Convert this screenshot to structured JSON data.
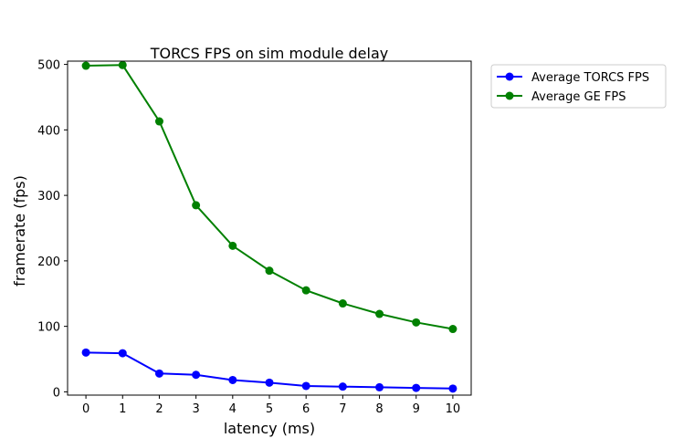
{
  "chart_data": {
    "type": "line",
    "title": "TORCS FPS on sim module delay",
    "xlabel": "latency (ms)",
    "ylabel": "framerate (fps)",
    "xlim": [
      -0.5,
      10.5
    ],
    "ylim": [
      -5,
      505
    ],
    "x": [
      0,
      1,
      2,
      3,
      4,
      5,
      6,
      7,
      8,
      9,
      10
    ],
    "xticks": [
      0,
      1,
      2,
      3,
      4,
      5,
      6,
      7,
      8,
      9,
      10
    ],
    "yticks": [
      0,
      100,
      200,
      300,
      400,
      500
    ],
    "grid": false,
    "legend_position": "outside-top-right",
    "series": [
      {
        "name": "Average TORCS FPS",
        "color": "#0000ff",
        "values": [
          60,
          59,
          28,
          26,
          18,
          14,
          9,
          8,
          7,
          6,
          5
        ]
      },
      {
        "name": "Average GE FPS",
        "color": "#008000",
        "values": [
          498,
          499,
          413,
          285,
          223,
          185,
          155,
          135,
          119,
          106,
          96
        ]
      }
    ]
  }
}
